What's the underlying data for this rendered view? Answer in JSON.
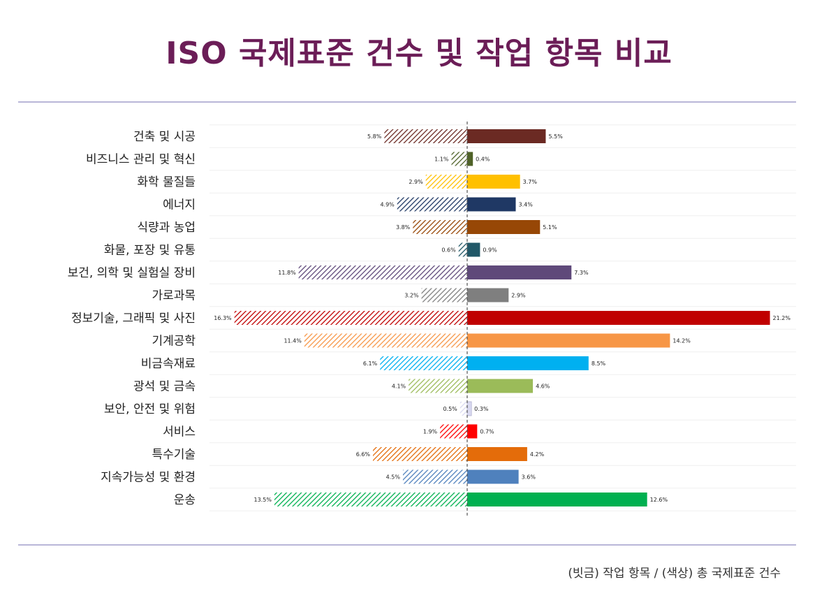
{
  "title": "ISO 국제표준 건수 및 작업 항목 비교",
  "caption": "(빗금) 작업 항목 / (색상) 총 국제표준 건수",
  "chart_data": {
    "type": "bar",
    "orientation": "diverging-horizontal",
    "title": "ISO 국제표준 건수 및 작업 항목 비교",
    "categories": [
      "건축 및 시공",
      "비즈니스 관리 및 혁신",
      "화학 물질들",
      "에너지",
      "식량과 농업",
      "화물, 포장 및 유통",
      "보건, 의학 및 실험실 장비",
      "가로과목",
      "정보기술, 그래픽 및 사진",
      "기계공학",
      "비금속재료",
      "광석 및 금속",
      "보안, 안전 및 위험",
      "서비스",
      "특수기술",
      "지속가능성 및 환경",
      "운송"
    ],
    "series": [
      {
        "pattern": "hatched",
        "side": "left",
        "values": [
          5.8,
          1.1,
          2.9,
          4.9,
          3.8,
          0.6,
          11.8,
          3.2,
          16.3,
          11.4,
          6.1,
          4.1,
          0.5,
          1.9,
          6.6,
          4.5,
          13.5
        ],
        "labels": [
          "5.8%",
          "1.1%",
          "2.9%",
          "4.9%",
          "3.8%",
          "0.6%",
          "11.8%",
          "3.2%",
          "16.3%",
          "11.4%",
          "6.1%",
          "4.1%",
          "0.5%",
          "1.9%",
          "6.6%",
          "4.5%",
          "13.5%"
        ]
      },
      {
        "pattern": "solid",
        "side": "right",
        "values": [
          5.5,
          0.4,
          3.7,
          3.4,
          5.1,
          0.9,
          7.3,
          2.9,
          21.2,
          14.2,
          8.5,
          4.6,
          0.3,
          0.7,
          4.2,
          3.6,
          12.6
        ],
        "labels": [
          "5.5%",
          "0.4%",
          "3.7%",
          "3.4%",
          "5.1%",
          "0.9%",
          "7.3%",
          "2.9%",
          "21.2%",
          "14.2%",
          "8.5%",
          "4.6%",
          "0.3%",
          "0.7%",
          "4.2%",
          "3.6%",
          "12.6%"
        ]
      }
    ],
    "colors": [
      "#6b2a23",
      "#4f6228",
      "#ffc000",
      "#1f3864",
      "#974706",
      "#215868",
      "#5f497a",
      "#7f7f7f",
      "#c00000",
      "#f79646",
      "#00b0f0",
      "#9bbb59",
      "#d9d9f0",
      "#ff0000",
      "#e46c0a",
      "#4f81bd",
      "#00b050"
    ],
    "grid": true,
    "legend": "none"
  }
}
